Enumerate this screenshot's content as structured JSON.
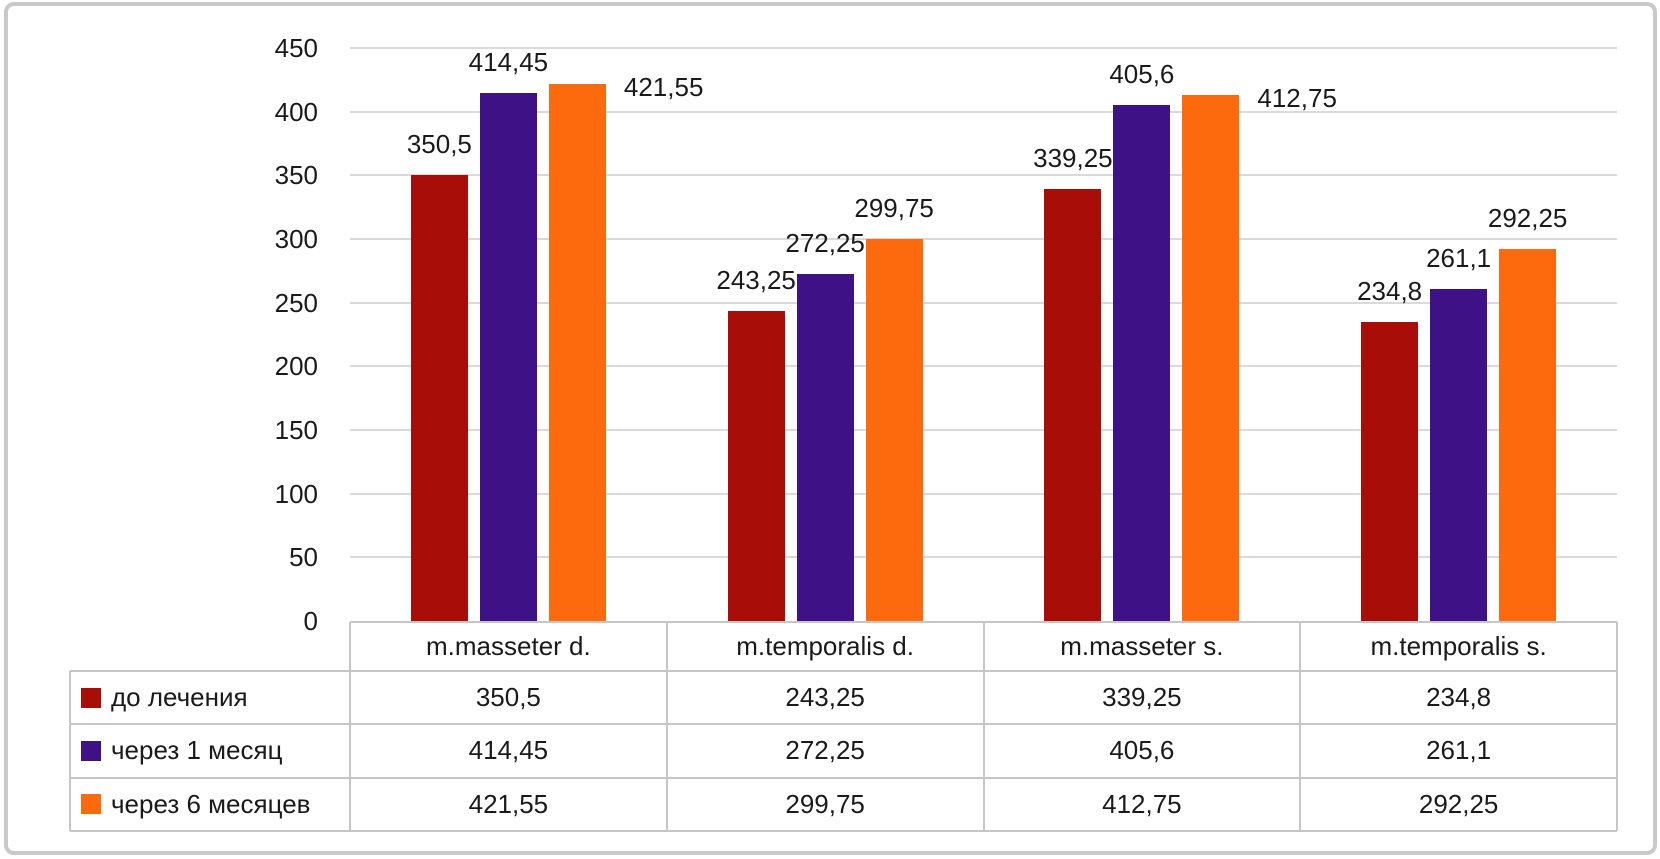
{
  "chart_data": {
    "type": "bar",
    "title": "",
    "xlabel": "",
    "ylabel": "",
    "categories": [
      "m.masseter d.",
      "m.temporalis d.",
      "m.masseter s.",
      "m.temporalis s."
    ],
    "series": [
      {
        "name": "до лечения",
        "color": "#a80d08",
        "values": [
          350.5,
          243.25,
          339.25,
          234.8
        ],
        "labels": [
          "350,5",
          "243,25",
          "339,25",
          "234,8"
        ]
      },
      {
        "name": "через 1 месяц",
        "color": "#3e1186",
        "values": [
          414.45,
          272.25,
          405.6,
          261.1
        ],
        "labels": [
          "414,45",
          "272,25",
          "405,6",
          "261,1"
        ]
      },
      {
        "name": "через 6 месяцев",
        "color": "#fd6a0d",
        "values": [
          421.55,
          299.75,
          412.75,
          292.25
        ],
        "labels": [
          "421,55",
          "299,75",
          "412,75",
          "292,25"
        ]
      }
    ],
    "ylim": [
      0,
      450
    ],
    "ytick_step": 50,
    "yticks": [
      "0",
      "50",
      "100",
      "150",
      "200",
      "250",
      "300",
      "350",
      "400",
      "450"
    ],
    "grid": true,
    "legend_position": "table-left",
    "data_labels": "outside-end",
    "label_placement_right": [
      [
        2,
        0
      ],
      [
        2,
        2
      ]
    ]
  }
}
